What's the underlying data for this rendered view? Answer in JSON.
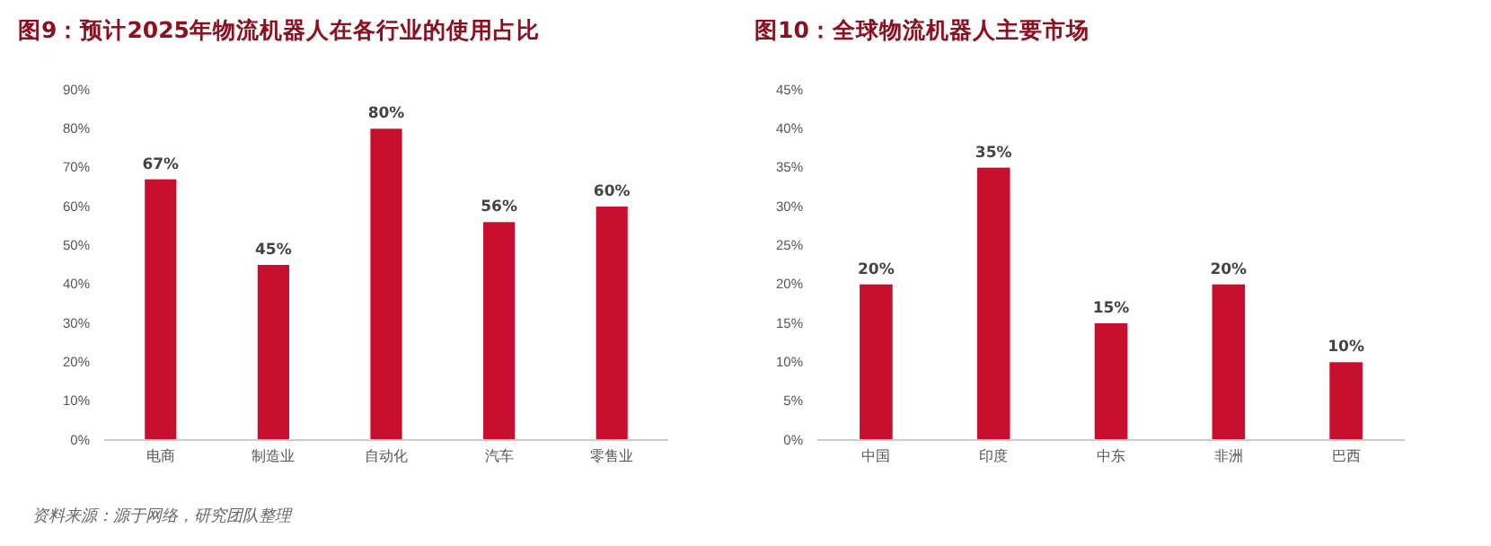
{
  "chart_data": [
    {
      "type": "bar",
      "title": "图9：预计2025年物流机器人在各行业的使用占比",
      "categories": [
        "电商",
        "制造业",
        "自动化",
        "汽车",
        "零售业"
      ],
      "values": [
        67,
        45,
        80,
        56,
        60
      ],
      "value_labels": [
        "67%",
        "45%",
        "80%",
        "56%",
        "60%"
      ],
      "color": "#c8102e",
      "ylim": [
        0,
        90
      ],
      "yticks": [
        {
          "value": 0,
          "label": "0%"
        },
        {
          "value": 10,
          "label": "10%"
        },
        {
          "value": 20,
          "label": "20%"
        },
        {
          "value": 30,
          "label": "30%"
        },
        {
          "value": 40,
          "label": "40%"
        },
        {
          "value": 50,
          "label": "50%"
        },
        {
          "value": 60,
          "label": "60%"
        },
        {
          "value": 70,
          "label": "70%"
        },
        {
          "value": 80,
          "label": "80%"
        },
        {
          "value": 90,
          "label": "90%"
        }
      ],
      "grid": false,
      "annotations": [
        "资料来源：源于网络，研究团队整理"
      ]
    },
    {
      "type": "bar",
      "title": "图10：全球物流机器人主要市场",
      "categories": [
        "中国",
        "印度",
        "中东",
        "非洲",
        "巴西"
      ],
      "values": [
        20,
        35,
        15,
        20,
        10
      ],
      "value_labels": [
        "20%",
        "35%",
        "15%",
        "20%",
        "10%"
      ],
      "color": "#c8102e",
      "ylim": [
        0,
        45
      ],
      "yticks": [
        {
          "value": 0,
          "label": "0%"
        },
        {
          "value": 5,
          "label": "5%"
        },
        {
          "value": 10,
          "label": "10%"
        },
        {
          "value": 15,
          "label": "15%"
        },
        {
          "value": 20,
          "label": "20%"
        },
        {
          "value": 25,
          "label": "25%"
        },
        {
          "value": 30,
          "label": "30%"
        },
        {
          "value": 35,
          "label": "35%"
        },
        {
          "value": 40,
          "label": "40%"
        },
        {
          "value": 45,
          "label": "45%"
        }
      ],
      "grid": false
    }
  ]
}
